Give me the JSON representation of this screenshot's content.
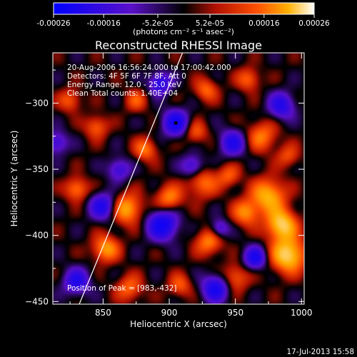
{
  "chart_data": {
    "type": "heatmap",
    "title": "Reconstructed RHESSI Image",
    "xlabel": "Heliocentric X (arcsec)",
    "ylabel": "Heliocentric Y (arcsec)",
    "xlim": [
      812,
      1002
    ],
    "ylim": [
      -452,
      -262
    ],
    "x_ticks": [
      850,
      900,
      950,
      1000
    ],
    "y_ticks": [
      -300,
      -350,
      -400,
      -450
    ],
    "colorbar": {
      "range": [
        -0.00026,
        0.00026
      ],
      "ticks": [
        "-0.00026",
        "-0.00016",
        "-5.2e-05",
        "5.2e-05",
        "0.00016",
        "0.00026"
      ],
      "label": "(photons cm⁻² s⁻¹ asec⁻²)"
    },
    "annotations": [
      "20-Aug-2006 16:56:24.000 to 17:00:42.000",
      "Detectors: 4F 5F 6F 7F 8F, Att 0",
      "Energy Range: 12.0 - 25.0 keV",
      "Clean    Total counts: 1.40E+04"
    ],
    "peak": {
      "label": "Position of Peak = [983,-432]",
      "x": 983,
      "y": -432
    },
    "limb_line": [
      [
        832,
        -452
      ],
      [
        910,
        -262
      ]
    ],
    "blobs": [
      {
        "x": 990,
        "y": -415,
        "v": 1.0,
        "s": 9
      },
      {
        "x": 985,
        "y": -392,
        "v": 0.95,
        "s": 8
      },
      {
        "x": 975,
        "y": -370,
        "v": 0.8,
        "s": 9
      },
      {
        "x": 970,
        "y": -325,
        "v": 0.55,
        "s": 8
      },
      {
        "x": 990,
        "y": -340,
        "v": 0.4,
        "s": 6
      },
      {
        "x": 958,
        "y": -383,
        "v": 0.6,
        "s": 7
      },
      {
        "x": 945,
        "y": -355,
        "v": 0.45,
        "s": 6
      },
      {
        "x": 950,
        "y": -432,
        "v": 0.5,
        "s": 7
      },
      {
        "x": 930,
        "y": -405,
        "v": 0.6,
        "s": 7
      },
      {
        "x": 925,
        "y": -360,
        "v": 0.55,
        "s": 8
      },
      {
        "x": 920,
        "y": -322,
        "v": 0.45,
        "s": 6
      },
      {
        "x": 928,
        "y": -290,
        "v": 0.5,
        "s": 6
      },
      {
        "x": 900,
        "y": -372,
        "v": 0.6,
        "s": 7
      },
      {
        "x": 882,
        "y": -335,
        "v": 0.55,
        "s": 6
      },
      {
        "x": 868,
        "y": -380,
        "v": 0.75,
        "s": 8
      },
      {
        "x": 852,
        "y": -410,
        "v": 0.7,
        "s": 7
      },
      {
        "x": 830,
        "y": -365,
        "v": 0.6,
        "s": 6
      },
      {
        "x": 845,
        "y": -318,
        "v": 0.5,
        "s": 6
      },
      {
        "x": 825,
        "y": -298,
        "v": 0.45,
        "s": 6
      },
      {
        "x": 875,
        "y": -298,
        "v": 0.4,
        "s": 6
      },
      {
        "x": 870,
        "y": -440,
        "v": 0.5,
        "s": 7
      },
      {
        "x": 908,
        "y": -438,
        "v": 0.45,
        "s": 6
      },
      {
        "x": 960,
        "y": -282,
        "v": 0.5,
        "s": 6
      },
      {
        "x": 905,
        "y": -315,
        "v": -0.85,
        "s": 7
      },
      {
        "x": 893,
        "y": -285,
        "v": -0.7,
        "s": 6
      },
      {
        "x": 895,
        "y": -392,
        "v": -0.95,
        "s": 8
      },
      {
        "x": 850,
        "y": -378,
        "v": -0.75,
        "s": 7
      },
      {
        "x": 935,
        "y": -440,
        "v": -0.85,
        "s": 7
      },
      {
        "x": 965,
        "y": -417,
        "v": -0.8,
        "s": 6
      },
      {
        "x": 948,
        "y": -330,
        "v": -0.7,
        "s": 7
      },
      {
        "x": 985,
        "y": -302,
        "v": -0.7,
        "s": 7
      },
      {
        "x": 830,
        "y": -435,
        "v": -0.7,
        "s": 7
      },
      {
        "x": 918,
        "y": -348,
        "v": -0.6,
        "s": 6
      },
      {
        "x": 862,
        "y": -350,
        "v": -0.55,
        "s": 6
      },
      {
        "x": 938,
        "y": -395,
        "v": -0.55,
        "s": 5
      },
      {
        "x": 815,
        "y": -330,
        "v": -0.55,
        "s": 6
      }
    ]
  },
  "footer": {
    "timestamp": "17-Jul-2013 15:58"
  }
}
